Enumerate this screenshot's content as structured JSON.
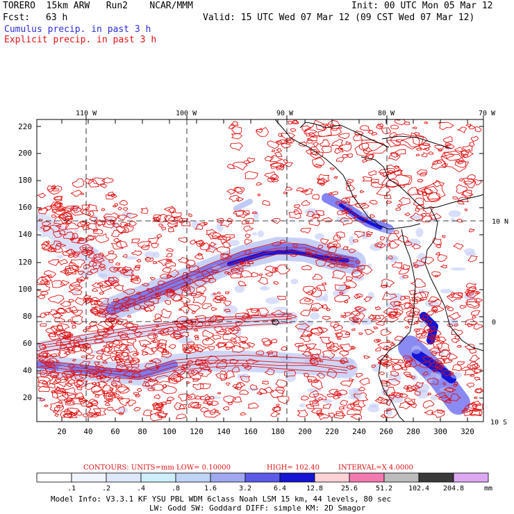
{
  "header": {
    "model": "TORERO  15km ARW   Run2    NCAR/MMM",
    "init": "Init: 00 UTC Mon 05 Mar 12",
    "fcst_label": "Fcst:",
    "fcst_hours": "63 h",
    "valid": "Valid: 15 UTC Wed 07 Mar 12 (09 CST Wed 07 Mar 12)",
    "legend_cumulus": "Cumulus precip. in past 3 h",
    "legend_explicit": "Explicit precip. in past 3 h",
    "legend_cumulus_color": "#2b2bd6",
    "legend_explicit_color": "#e01010"
  },
  "map": {
    "lon_labels": [
      "110 W",
      "100 W",
      "90 W",
      "80 W",
      "70 W"
    ],
    "lat_labels": [
      "10 N",
      "0",
      "10 S"
    ],
    "y_ticks": [
      "220",
      "200",
      "180",
      "160",
      "140",
      "120",
      "100",
      "80",
      "60",
      "40",
      "20"
    ],
    "x_ticks": [
      "20",
      "40",
      "60",
      "80",
      "100",
      "120",
      "140",
      "160",
      "180",
      "200",
      "220",
      "240",
      "260",
      "280",
      "300",
      "320"
    ],
    "colors": {
      "explicit": "#e01010",
      "cumulus_dark": "#1515d8",
      "cumulus_mid": "#6d6df0",
      "cumulus_light": "#b9c4f5",
      "land": "#000000"
    }
  },
  "contour_info": {
    "prefix": "CONTOURS:  UNITS=mm  LOW= 0.10000",
    "high": "HIGH=  102.40",
    "interval": "INTERVAL=X  4.0000"
  },
  "colorbar": {
    "labels": [
      ".1",
      ".2",
      ".4",
      ".8",
      "1.6",
      "3.2",
      "6.4",
      "12.8",
      "25.6",
      "51.2",
      "102.4",
      "204.8"
    ],
    "units": "mm",
    "colors": [
      "#ffffff",
      "#f0f4ff",
      "#dde8fb",
      "#cdeefa",
      "#c0d4f5",
      "#9fa8f0",
      "#5b5be8",
      "#1414d2",
      "#fcd2d4",
      "#f27ab0",
      "#bdbdbd",
      "#3a3a3a",
      "#dca8f2"
    ]
  },
  "footer": {
    "line1": "Model Info: V3.3.1   KF    YSU PBL  WDM 6class  Noah LSM  15 km,   44 levels,   80 sec",
    "line2": "LW: Godd SW: Goddard DIFF: simple KM: 2D Smagor"
  }
}
